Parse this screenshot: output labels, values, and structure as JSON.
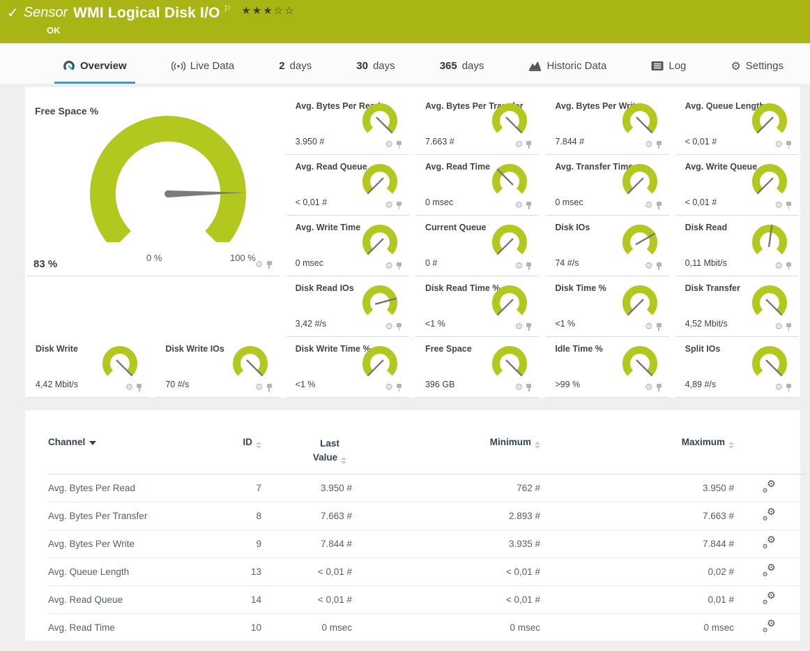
{
  "header": {
    "sensor_label": "Sensor",
    "title": "WMI Logical Disk I/O",
    "status": "OK",
    "stars": "★★★☆☆",
    "stars_filled": 3,
    "stars_total": 5
  },
  "tabs": [
    {
      "id": "overview",
      "icon": "gauge-icon",
      "num": "",
      "label": "Overview",
      "active": true
    },
    {
      "id": "live-data",
      "icon": "live-icon",
      "num": "",
      "label": "Live Data",
      "active": false
    },
    {
      "id": "2-days",
      "icon": "",
      "num": "2",
      "label": "days",
      "active": false
    },
    {
      "id": "30-days",
      "icon": "",
      "num": "30",
      "label": "days",
      "active": false
    },
    {
      "id": "365-days",
      "icon": "",
      "num": "365",
      "label": "days",
      "active": false
    },
    {
      "id": "historic-data",
      "icon": "historic-icon",
      "num": "",
      "label": "Historic Data",
      "active": false
    },
    {
      "id": "log",
      "icon": "log-icon",
      "num": "",
      "label": "Log",
      "active": false
    },
    {
      "id": "settings",
      "icon": "settings-icon",
      "num": "",
      "label": "Settings",
      "active": false
    }
  ],
  "big_gauge": {
    "title": "Free Space %",
    "value": "83 %",
    "min_label": "0 %",
    "max_label": "100 %",
    "percent": 83,
    "needle_angle": 89
  },
  "gauges": {
    "tiles": [
      {
        "name": "Avg. Bytes Per Read",
        "value": "3.950 #",
        "angle": 135
      },
      {
        "name": "Avg. Bytes Per Transfer",
        "value": "7.663 #",
        "angle": 135
      },
      {
        "name": "Avg. Bytes Per Write",
        "value": "7.844 #",
        "angle": 135
      },
      {
        "name": "Avg. Queue Length",
        "value": "< 0,01 #",
        "angle": -135
      },
      {
        "name": "Avg. Read Queue",
        "value": "< 0,01 #",
        "angle": -135
      },
      {
        "name": "Avg. Read Time",
        "value": "0 msec",
        "angle": -45
      },
      {
        "name": "Avg. Transfer Time",
        "value": "0 msec",
        "angle": -135
      },
      {
        "name": "Avg. Write Queue",
        "value": "< 0,01 #",
        "angle": -135
      },
      {
        "name": "Avg. Write Time",
        "value": "0 msec",
        "angle": -135
      },
      {
        "name": "Current Queue",
        "value": "0 #",
        "angle": -135
      },
      {
        "name": "Disk IOs",
        "value": "74 #/s",
        "angle": 60
      },
      {
        "name": "Disk Read",
        "value": "0,11 Mbit/s",
        "angle": 8
      },
      {
        "name": "Disk Read IOs",
        "value": "3,42 #/s",
        "angle": 75
      },
      {
        "name": "Disk Read Time %",
        "value": "<1 %",
        "angle": -135
      },
      {
        "name": "Disk Time %",
        "value": "<1 %",
        "angle": -135
      },
      {
        "name": "Disk Transfer",
        "value": "4,52 Mbit/s",
        "angle": 135
      },
      {
        "name": "Disk Write",
        "value": "4,42 Mbit/s",
        "angle": 135
      },
      {
        "name": "Disk Write IOs",
        "value": "70 #/s",
        "angle": 135
      },
      {
        "name": "Disk Write Time %",
        "value": "<1 %",
        "angle": -135
      },
      {
        "name": "Free Space",
        "value": "396 GB",
        "angle": 135
      },
      {
        "name": "Idle Time %",
        "value": ">99 %",
        "angle": 135
      },
      {
        "name": "Split IOs",
        "value": "4,89 #/s",
        "angle": 135
      }
    ]
  },
  "table": {
    "headers": {
      "channel": "Channel",
      "id": "ID",
      "last_value": "Last Value",
      "minimum": "Minimum",
      "maximum": "Maximum"
    },
    "rows": [
      {
        "channel": "Avg. Bytes Per Read",
        "id": "7",
        "last": "3.950 #",
        "min": "762 #",
        "max": "3.950 #"
      },
      {
        "channel": "Avg. Bytes Per Transfer",
        "id": "8",
        "last": "7.663 #",
        "min": "2.893 #",
        "max": "7.663 #"
      },
      {
        "channel": "Avg. Bytes Per Write",
        "id": "9",
        "last": "7.844 #",
        "min": "3.935 #",
        "max": "7.844 #"
      },
      {
        "channel": "Avg. Queue Length",
        "id": "13",
        "last": "< 0,01 #",
        "min": "< 0,01 #",
        "max": "0,02 #"
      },
      {
        "channel": "Avg. Read Queue",
        "id": "14",
        "last": "< 0,01 #",
        "min": "< 0,01 #",
        "max": "0,01 #"
      },
      {
        "channel": "Avg. Read Time",
        "id": "10",
        "last": "0 msec",
        "min": "0 msec",
        "max": "0 msec"
      }
    ]
  },
  "colors": {
    "status_ok_green": "#a9b514",
    "gauge_green": "#b2c81e",
    "active_tab_blue": "#23a3dc",
    "table_header_navy": "#324354",
    "needle_gray": "#7b7b7b"
  }
}
